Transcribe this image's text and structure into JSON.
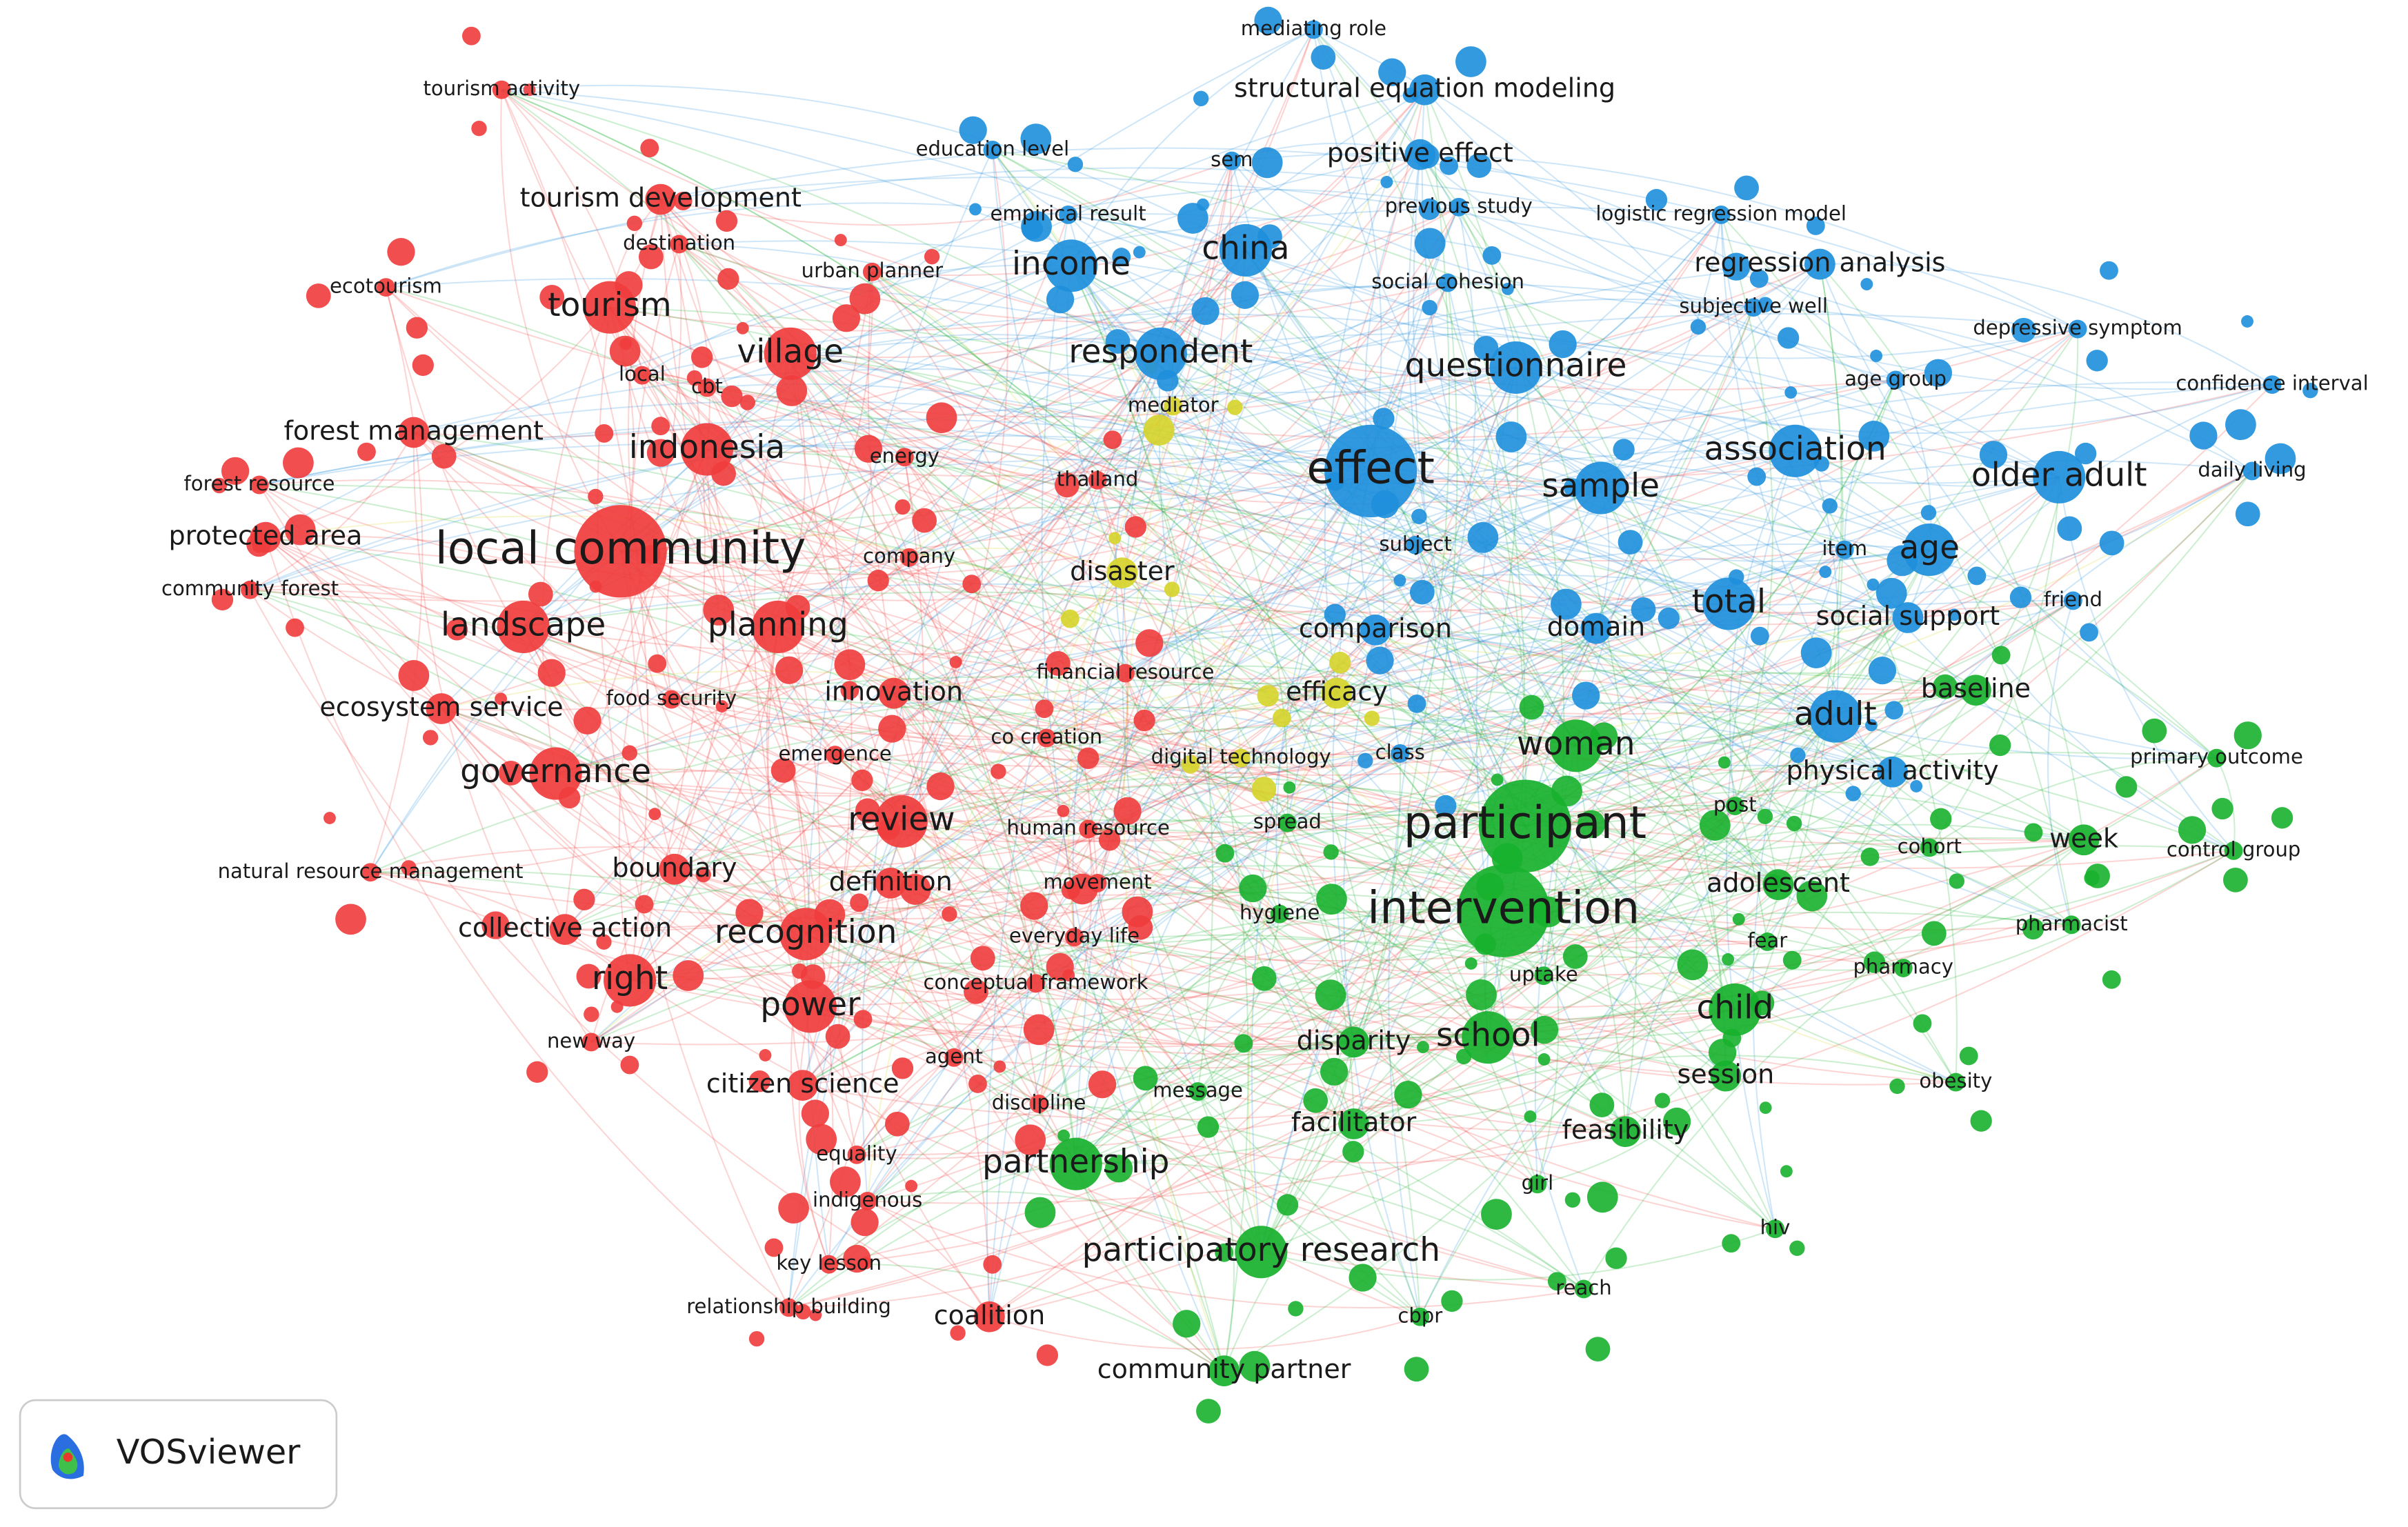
{
  "clusters": [
    {
      "color": "#f03c3c",
      "nodes": [
        "tourism activity",
        "tourism development",
        "destination",
        "ecotourism",
        "tourism",
        "village",
        "urban planner",
        "local",
        "cbt",
        "forest management",
        "indonesia",
        "energy",
        "forest resource",
        "protected area",
        "local community",
        "company",
        "community forest",
        "landscape",
        "planning",
        "innovation",
        "ecosystem service",
        "food security",
        "co creation",
        "emergence",
        "governance",
        "review",
        "human resource",
        "natural resource management",
        "boundary",
        "definition",
        "movement",
        "collective action",
        "recognition",
        "everyday life",
        "right",
        "power",
        "new way",
        "agent",
        "citizen science",
        "equality",
        "indigenous",
        "key lesson",
        "relationship building",
        "coalition",
        "thailand",
        "financial resource",
        "conceptual framework",
        "discipline"
      ]
    },
    {
      "color": "#d6d42a",
      "nodes": [
        "mediator",
        "disaster",
        "efficacy",
        "digital technology"
      ]
    },
    {
      "color": "#1e8fdc",
      "nodes": [
        "mediating role",
        "structural equation modeling",
        "education level",
        "sem",
        "positive effect",
        "empirical result",
        "previous study",
        "logistic regression model",
        "china",
        "income",
        "social cohesion",
        "regression analysis",
        "subjective well",
        "depressive symptom",
        "respondent",
        "questionnaire",
        "age group",
        "confidence interval",
        "association",
        "effect",
        "sample",
        "older adult",
        "daily living",
        "subject",
        "item",
        "age",
        "total",
        "friend",
        "comparison",
        "domain",
        "social support",
        "adult",
        "physical activity",
        "class"
      ]
    },
    {
      "color": "#18b12e",
      "nodes": [
        "baseline",
        "primary outcome",
        "woman",
        "participant",
        "post",
        "spread",
        "cohort",
        "week",
        "control group",
        "hygiene",
        "intervention",
        "adolescent",
        "fear",
        "pharmacist",
        "pharmacy",
        "uptake",
        "child",
        "disparity",
        "school",
        "session",
        "obesity",
        "message",
        "facilitator",
        "feasibility",
        "partnership",
        "girl",
        "hiv",
        "participatory research",
        "reach",
        "cbpr",
        "community partner"
      ]
    }
  ],
  "logo": "VOSviewer"
}
